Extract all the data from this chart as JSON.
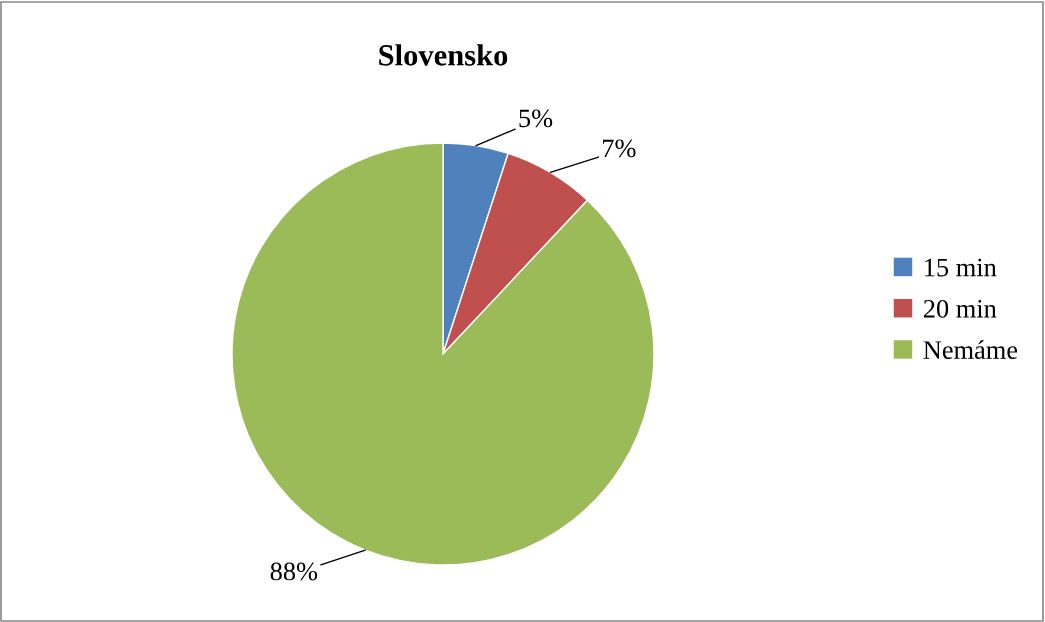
{
  "chart_data": {
    "type": "pie",
    "title": "Slovensko",
    "categories": [
      "15 min",
      "20 min",
      "Nemáme"
    ],
    "values": [
      5,
      7,
      88
    ],
    "colors": [
      "#4f81bd",
      "#c0504d",
      "#9bbb59"
    ],
    "value_labels": [
      "5%",
      "7%",
      "88%"
    ],
    "legend": "right"
  }
}
